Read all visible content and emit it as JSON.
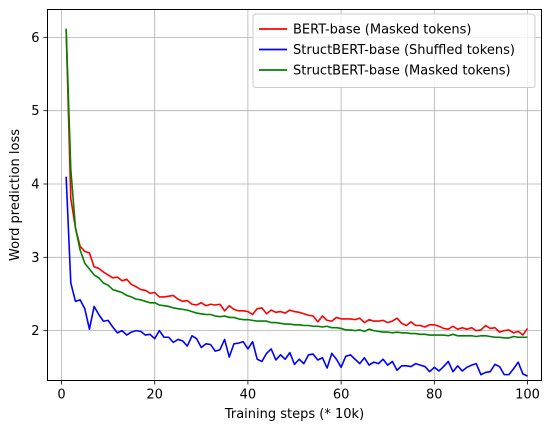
{
  "chart_data": {
    "type": "line",
    "xlabel": "Training steps (* 10k)",
    "ylabel": "Word prediction loss",
    "xlim": [
      -3,
      103
    ],
    "ylim": [
      1.32,
      6.38
    ],
    "xticks": [
      0,
      20,
      40,
      60,
      80,
      100
    ],
    "yticks": [
      2,
      3,
      4,
      5,
      6
    ],
    "grid": true,
    "legend_position": "top-right",
    "series": [
      {
        "name": "BERT-base (Masked tokens)",
        "color": "#ff0000",
        "points": [
          [
            1,
            6.1
          ],
          [
            2,
            3.8
          ],
          [
            3,
            3.4
          ],
          [
            4,
            3.15
          ],
          [
            5,
            3.08
          ],
          [
            6,
            3.06
          ],
          [
            7,
            2.87
          ],
          [
            8,
            2.85
          ],
          [
            9,
            2.8
          ],
          [
            10,
            2.76
          ],
          [
            11,
            2.72
          ],
          [
            12,
            2.73
          ],
          [
            13,
            2.68
          ],
          [
            14,
            2.7
          ],
          [
            15,
            2.63
          ],
          [
            16,
            2.6
          ],
          [
            17,
            2.56
          ],
          [
            18,
            2.55
          ],
          [
            19,
            2.51
          ],
          [
            20,
            2.52
          ],
          [
            21,
            2.46
          ],
          [
            22,
            2.46
          ],
          [
            23,
            2.47
          ],
          [
            24,
            2.48
          ],
          [
            25,
            2.43
          ],
          [
            26,
            2.4
          ],
          [
            27,
            2.41
          ],
          [
            28,
            2.36
          ],
          [
            29,
            2.35
          ],
          [
            30,
            2.38
          ],
          [
            31,
            2.34
          ],
          [
            32,
            2.36
          ],
          [
            33,
            2.35
          ],
          [
            34,
            2.36
          ],
          [
            35,
            2.27
          ],
          [
            36,
            2.34
          ],
          [
            37,
            2.29
          ],
          [
            38,
            2.27
          ],
          [
            39,
            2.27
          ],
          [
            40,
            2.26
          ],
          [
            41,
            2.22
          ],
          [
            42,
            2.3
          ],
          [
            43,
            2.31
          ],
          [
            44,
            2.23
          ],
          [
            45,
            2.28
          ],
          [
            46,
            2.25
          ],
          [
            47,
            2.26
          ],
          [
            48,
            2.24
          ],
          [
            49,
            2.28
          ],
          [
            50,
            2.26
          ],
          [
            51,
            2.25
          ],
          [
            52,
            2.23
          ],
          [
            53,
            2.21
          ],
          [
            54,
            2.2
          ],
          [
            55,
            2.12
          ],
          [
            56,
            2.2
          ],
          [
            57,
            2.14
          ],
          [
            58,
            2.13
          ],
          [
            59,
            2.18
          ],
          [
            60,
            2.16
          ],
          [
            61,
            2.16
          ],
          [
            62,
            2.16
          ],
          [
            63,
            2.15
          ],
          [
            64,
            2.17
          ],
          [
            65,
            2.11
          ],
          [
            66,
            2.15
          ],
          [
            67,
            2.13
          ],
          [
            68,
            2.13
          ],
          [
            69,
            2.14
          ],
          [
            70,
            2.11
          ],
          [
            71,
            2.13
          ],
          [
            72,
            2.17
          ],
          [
            73,
            2.1
          ],
          [
            74,
            2.07
          ],
          [
            75,
            2.12
          ],
          [
            76,
            2.07
          ],
          [
            77,
            2.07
          ],
          [
            78,
            2.05
          ],
          [
            79,
            2.08
          ],
          [
            80,
            2.08
          ],
          [
            81,
            2.06
          ],
          [
            82,
            2.03
          ],
          [
            83,
            2.02
          ],
          [
            84,
            2.06
          ],
          [
            85,
            2.02
          ],
          [
            86,
            2.04
          ],
          [
            87,
            2.02
          ],
          [
            88,
            2.04
          ],
          [
            89,
            2.0
          ],
          [
            90,
            2.01
          ],
          [
            91,
            2.07
          ],
          [
            92,
            2.03
          ],
          [
            93,
            2.04
          ],
          [
            94,
            1.98
          ],
          [
            95,
            2.0
          ],
          [
            96,
            2.01
          ],
          [
            97,
            1.97
          ],
          [
            98,
            1.99
          ],
          [
            99,
            1.94
          ],
          [
            100,
            2.03
          ]
        ]
      },
      {
        "name": "StructBERT-base (Shuffled tokens)",
        "color": "#0000ff",
        "points": [
          [
            1,
            4.1
          ],
          [
            2,
            2.65
          ],
          [
            3,
            2.4
          ],
          [
            4,
            2.42
          ],
          [
            5,
            2.3
          ],
          [
            6,
            2.02
          ],
          [
            7,
            2.33
          ],
          [
            8,
            2.22
          ],
          [
            9,
            2.13
          ],
          [
            10,
            2.14
          ],
          [
            11,
            2.05
          ],
          [
            12,
            1.97
          ],
          [
            13,
            2.0
          ],
          [
            14,
            1.94
          ],
          [
            15,
            1.98
          ],
          [
            16,
            2.0
          ],
          [
            17,
            1.99
          ],
          [
            18,
            1.94
          ],
          [
            19,
            1.95
          ],
          [
            20,
            1.89
          ],
          [
            21,
            2.0
          ],
          [
            22,
            1.91
          ],
          [
            23,
            1.91
          ],
          [
            24,
            1.84
          ],
          [
            25,
            1.88
          ],
          [
            26,
            1.86
          ],
          [
            27,
            1.79
          ],
          [
            28,
            1.93
          ],
          [
            29,
            1.89
          ],
          [
            30,
            1.77
          ],
          [
            31,
            1.82
          ],
          [
            32,
            1.81
          ],
          [
            33,
            1.72
          ],
          [
            34,
            1.74
          ],
          [
            35,
            1.88
          ],
          [
            36,
            1.64
          ],
          [
            37,
            1.82
          ],
          [
            38,
            1.83
          ],
          [
            39,
            1.85
          ],
          [
            40,
            1.75
          ],
          [
            41,
            1.85
          ],
          [
            42,
            1.61
          ],
          [
            43,
            1.58
          ],
          [
            44,
            1.69
          ],
          [
            45,
            1.75
          ],
          [
            46,
            1.6
          ],
          [
            47,
            1.67
          ],
          [
            48,
            1.61
          ],
          [
            49,
            1.7
          ],
          [
            50,
            1.54
          ],
          [
            51,
            1.61
          ],
          [
            52,
            1.55
          ],
          [
            53,
            1.67
          ],
          [
            54,
            1.68
          ],
          [
            55,
            1.6
          ],
          [
            56,
            1.63
          ],
          [
            57,
            1.49
          ],
          [
            58,
            1.69
          ],
          [
            59,
            1.61
          ],
          [
            60,
            1.5
          ],
          [
            61,
            1.65
          ],
          [
            62,
            1.67
          ],
          [
            63,
            1.61
          ],
          [
            64,
            1.55
          ],
          [
            65,
            1.63
          ],
          [
            66,
            1.53
          ],
          [
            67,
            1.57
          ],
          [
            68,
            1.55
          ],
          [
            69,
            1.61
          ],
          [
            70,
            1.53
          ],
          [
            71,
            1.58
          ],
          [
            72,
            1.46
          ],
          [
            73,
            1.52
          ],
          [
            74,
            1.52
          ],
          [
            75,
            1.51
          ],
          [
            76,
            1.55
          ],
          [
            77,
            1.53
          ],
          [
            78,
            1.51
          ],
          [
            79,
            1.44
          ],
          [
            80,
            1.5
          ],
          [
            81,
            1.45
          ],
          [
            82,
            1.51
          ],
          [
            83,
            1.58
          ],
          [
            84,
            1.44
          ],
          [
            85,
            1.52
          ],
          [
            86,
            1.45
          ],
          [
            87,
            1.5
          ],
          [
            88,
            1.53
          ],
          [
            89,
            1.55
          ],
          [
            90,
            1.4
          ],
          [
            91,
            1.43
          ],
          [
            92,
            1.44
          ],
          [
            93,
            1.54
          ],
          [
            94,
            1.51
          ],
          [
            95,
            1.4
          ],
          [
            96,
            1.4
          ],
          [
            97,
            1.48
          ],
          [
            98,
            1.57
          ],
          [
            99,
            1.41
          ],
          [
            100,
            1.38
          ]
        ]
      },
      {
        "name": "StructBERT-base (Masked tokens)",
        "color": "#008000",
        "points": [
          [
            1,
            6.12
          ],
          [
            2,
            4.2
          ],
          [
            3,
            3.4
          ],
          [
            4,
            3.1
          ],
          [
            5,
            2.92
          ],
          [
            6,
            2.84
          ],
          [
            7,
            2.76
          ],
          [
            8,
            2.72
          ],
          [
            9,
            2.65
          ],
          [
            10,
            2.62
          ],
          [
            11,
            2.56
          ],
          [
            12,
            2.54
          ],
          [
            13,
            2.52
          ],
          [
            14,
            2.48
          ],
          [
            15,
            2.46
          ],
          [
            16,
            2.43
          ],
          [
            17,
            2.42
          ],
          [
            18,
            2.4
          ],
          [
            19,
            2.38
          ],
          [
            20,
            2.38
          ],
          [
            21,
            2.35
          ],
          [
            22,
            2.34
          ],
          [
            23,
            2.33
          ],
          [
            24,
            2.31
          ],
          [
            25,
            2.3
          ],
          [
            26,
            2.29
          ],
          [
            27,
            2.28
          ],
          [
            28,
            2.26
          ],
          [
            29,
            2.24
          ],
          [
            30,
            2.23
          ],
          [
            31,
            2.22
          ],
          [
            32,
            2.22
          ],
          [
            33,
            2.2
          ],
          [
            34,
            2.19
          ],
          [
            35,
            2.2
          ],
          [
            36,
            2.18
          ],
          [
            37,
            2.18
          ],
          [
            38,
            2.16
          ],
          [
            39,
            2.15
          ],
          [
            40,
            2.15
          ],
          [
            41,
            2.14
          ],
          [
            42,
            2.13
          ],
          [
            43,
            2.13
          ],
          [
            44,
            2.13
          ],
          [
            45,
            2.11
          ],
          [
            46,
            2.11
          ],
          [
            47,
            2.1
          ],
          [
            48,
            2.09
          ],
          [
            49,
            2.09
          ],
          [
            50,
            2.08
          ],
          [
            51,
            2.08
          ],
          [
            52,
            2.07
          ],
          [
            53,
            2.07
          ],
          [
            54,
            2.06
          ],
          [
            55,
            2.06
          ],
          [
            56,
            2.05
          ],
          [
            57,
            2.06
          ],
          [
            58,
            2.04
          ],
          [
            59,
            2.04
          ],
          [
            60,
            2.03
          ],
          [
            61,
            2.01
          ],
          [
            62,
            2.01
          ],
          [
            63,
            2.0
          ],
          [
            64,
            2.01
          ],
          [
            65,
            1.99
          ],
          [
            66,
            2.02
          ],
          [
            67,
            2.0
          ],
          [
            68,
            1.99
          ],
          [
            69,
            1.98
          ],
          [
            70,
            1.98
          ],
          [
            71,
            1.97
          ],
          [
            72,
            1.98
          ],
          [
            73,
            1.97
          ],
          [
            74,
            1.97
          ],
          [
            75,
            1.96
          ],
          [
            76,
            1.96
          ],
          [
            77,
            1.95
          ],
          [
            78,
            1.95
          ],
          [
            79,
            1.94
          ],
          [
            80,
            1.94
          ],
          [
            81,
            1.94
          ],
          [
            82,
            1.94
          ],
          [
            83,
            1.93
          ],
          [
            84,
            1.95
          ],
          [
            85,
            1.93
          ],
          [
            86,
            1.93
          ],
          [
            87,
            1.93
          ],
          [
            88,
            1.93
          ],
          [
            89,
            1.92
          ],
          [
            90,
            1.93
          ],
          [
            91,
            1.93
          ],
          [
            92,
            1.92
          ],
          [
            93,
            1.91
          ],
          [
            94,
            1.91
          ],
          [
            95,
            1.9
          ],
          [
            96,
            1.9
          ],
          [
            97,
            1.92
          ],
          [
            98,
            1.91
          ],
          [
            99,
            1.91
          ],
          [
            100,
            1.91
          ]
        ]
      }
    ]
  }
}
